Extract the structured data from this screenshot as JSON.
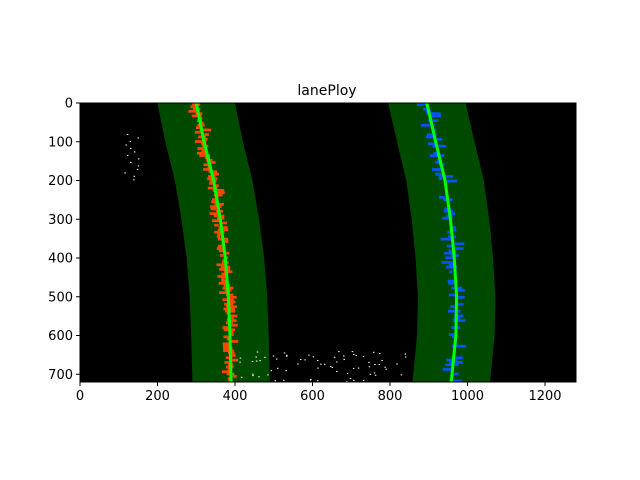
{
  "figure": {
    "title": "lanePloy",
    "image_size": [
      1280,
      720
    ],
    "x_ticks": [
      0,
      200,
      400,
      600,
      800,
      1000,
      1200
    ],
    "y_ticks": [
      0,
      100,
      200,
      300,
      400,
      500,
      600,
      700
    ]
  },
  "lanes": {
    "left": {
      "fit_color": "#00ff00",
      "pixel_color": "#ff4500",
      "fit_points": [
        [
          300,
          0
        ],
        [
          320,
          100
        ],
        [
          345,
          200
        ],
        [
          362,
          300
        ],
        [
          375,
          400
        ],
        [
          383,
          500
        ],
        [
          387,
          600
        ],
        [
          390,
          720
        ]
      ]
    },
    "right": {
      "fit_color": "#00ff00",
      "pixel_color": "#0055ff",
      "fit_points": [
        [
          895,
          0
        ],
        [
          918,
          100
        ],
        [
          942,
          200
        ],
        [
          956,
          300
        ],
        [
          966,
          400
        ],
        [
          972,
          500
        ],
        [
          970,
          600
        ],
        [
          958,
          720
        ]
      ]
    },
    "margin": 100,
    "window_color": "#004a00"
  },
  "colors": {
    "background": "#000000",
    "noise": "#ffffff"
  }
}
